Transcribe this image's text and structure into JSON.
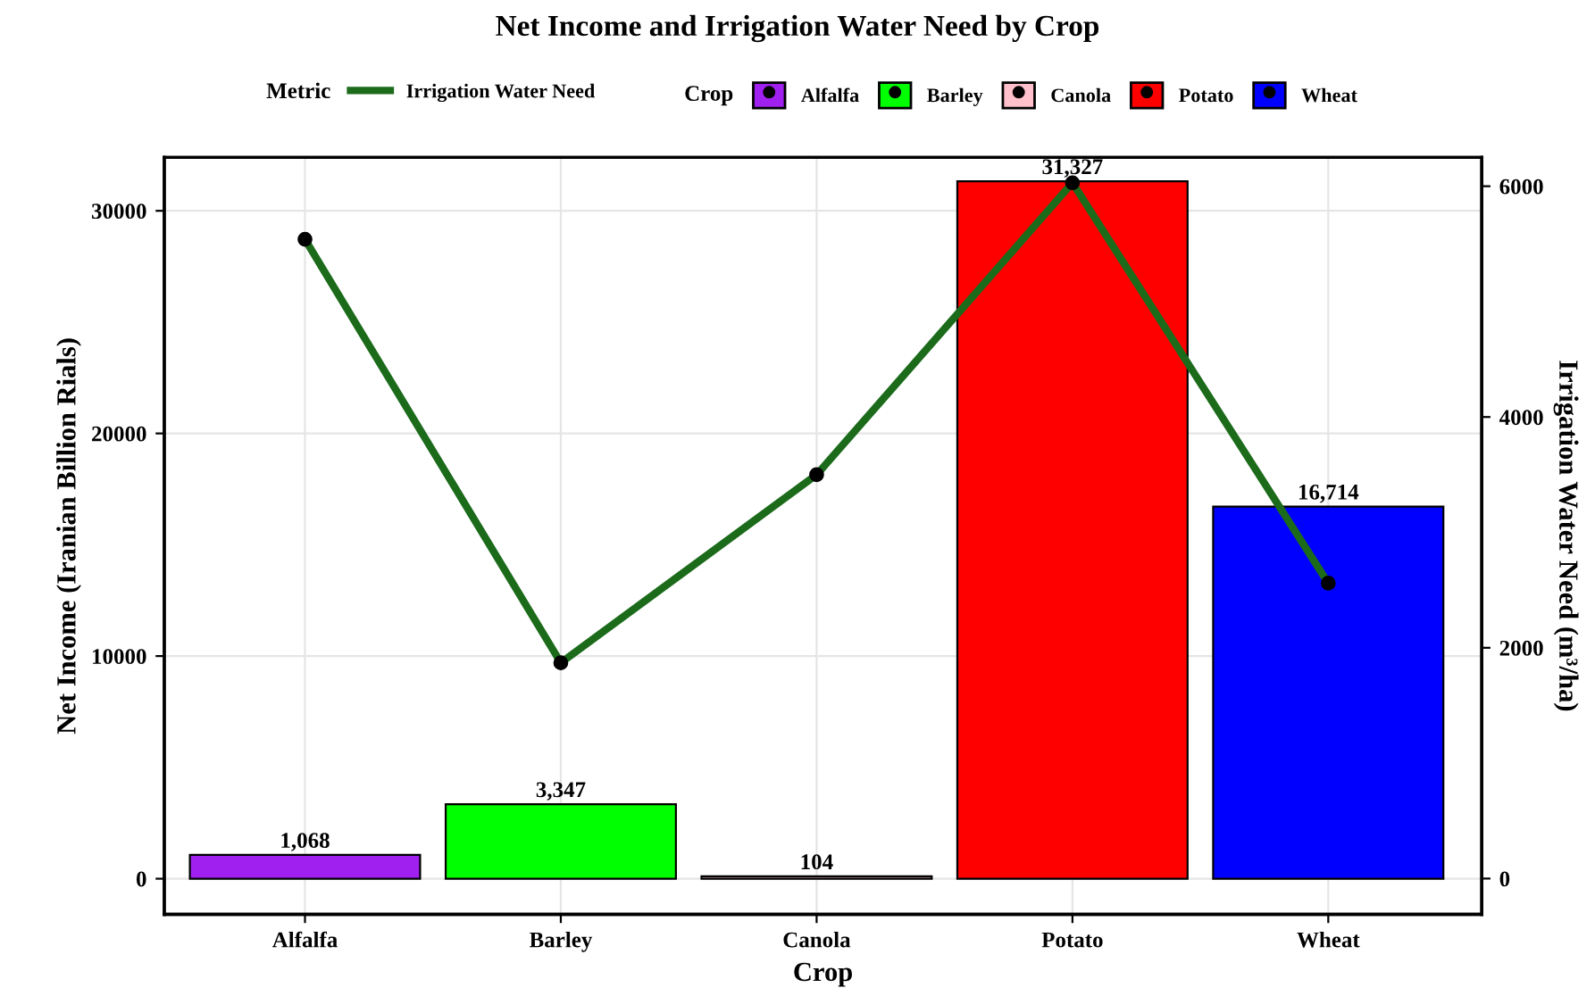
{
  "chart_data": {
    "type": "bar",
    "title": "Net Income and Irrigation Water Need by Crop",
    "xlabel": "Crop",
    "ylabel": "Net Income (Iranian Billion Rials)",
    "y2label": "Irrigation Water Need (m³/ha)",
    "legend_title": [
      "Metric",
      "Crop"
    ],
    "categories": [
      "Alfalfa",
      "Barley",
      "Canola",
      "Potato",
      "Wheat"
    ],
    "series": [
      {
        "values": [
          1068,
          3347,
          104,
          31327,
          16714
        ],
        "colors": [
          "#a020f0",
          "#00ff00",
          "#ffc0cb",
          "#ff0000",
          "#0000ff"
        ],
        "value_labels": [
          "1,068",
          "3,347",
          "104",
          "31,327",
          "16,714"
        ]
      },
      {
        "type": "line",
        "name": "Irrigation Water Need",
        "axis": "y2",
        "color": "#1b6b1b",
        "values": [
          5540,
          1870,
          3500,
          6030,
          2560
        ],
        "marker": "circle"
      }
    ],
    "ylim": [
      -1600,
      32400
    ],
    "yticks": [
      0,
      10000,
      20000,
      30000
    ],
    "y2lim": [
      -310,
      6250
    ],
    "y2ticks": [
      0,
      2000,
      4000,
      6000
    ],
    "grid": true,
    "legend": "top"
  }
}
